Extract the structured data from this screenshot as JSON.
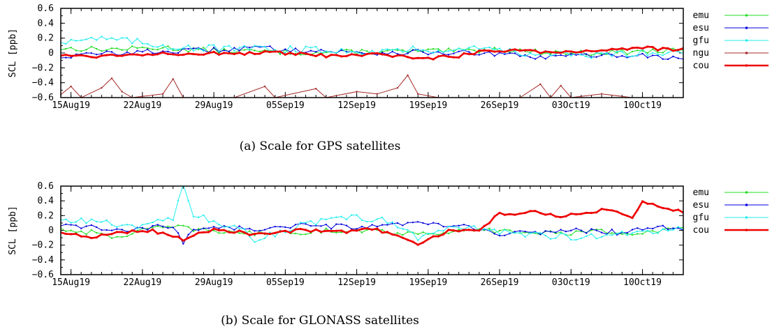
{
  "figure": {
    "captions": [
      "(a) Scale for GPS satellites",
      "(b) Scale for GLONASS satellites"
    ]
  },
  "chart_data": [
    {
      "type": "line",
      "caption": "(a) Scale for GPS satellites",
      "ylabel": "SCL [ppb]",
      "ylim": [
        -0.6,
        0.6
      ],
      "yticks": [
        "0.6",
        "0.4",
        "0.2",
        "0",
        "−0.2",
        "−0.4",
        "−0.6"
      ],
      "xlim": [
        "2019-08-14",
        "2019-10-14"
      ],
      "xticks": [
        {
          "label": "15Aug19",
          "date": "2019-08-15"
        },
        {
          "label": "22Aug19",
          "date": "2019-08-22"
        },
        {
          "label": "29Aug19",
          "date": "2019-08-29"
        },
        {
          "label": "05Sep19",
          "date": "2019-09-05"
        },
        {
          "label": "12Sep19",
          "date": "2019-09-12"
        },
        {
          "label": "19Sep19",
          "date": "2019-09-19"
        },
        {
          "label": "26Sep19",
          "date": "2019-09-26"
        },
        {
          "label": "03Oct19",
          "date": "2019-10-03"
        },
        {
          "label": "10Oct19",
          "date": "2019-10-10"
        }
      ],
      "legend": "right",
      "series": [
        {
          "name": "emu",
          "color": "#22dd22",
          "points": [
            [
              "2019-08-14",
              0.06
            ],
            [
              "2019-08-19",
              0.05
            ],
            [
              "2019-08-24",
              0.07
            ],
            [
              "2019-08-29",
              0.03
            ],
            [
              "2019-09-03",
              0.02
            ],
            [
              "2019-09-08",
              0.0
            ],
            [
              "2019-09-13",
              0.02
            ],
            [
              "2019-09-18",
              0.02
            ],
            [
              "2019-09-23",
              0.03
            ],
            [
              "2019-09-26",
              0.05
            ],
            [
              "2019-09-30",
              0.01
            ],
            [
              "2019-10-05",
              0.0
            ],
            [
              "2019-10-10",
              0.02
            ],
            [
              "2019-10-14",
              0.03
            ]
          ]
        },
        {
          "name": "esu",
          "color": "#0000dd",
          "points": [
            [
              "2019-08-14",
              -0.05
            ],
            [
              "2019-08-19",
              0.0
            ],
            [
              "2019-08-24",
              0.02
            ],
            [
              "2019-08-29",
              0.04
            ],
            [
              "2019-09-02",
              0.07
            ],
            [
              "2019-09-08",
              0.03
            ],
            [
              "2019-09-13",
              0.0
            ],
            [
              "2019-09-18",
              0.01
            ],
            [
              "2019-09-23",
              0.0
            ],
            [
              "2019-09-26",
              -0.02
            ],
            [
              "2019-09-30",
              -0.06
            ],
            [
              "2019-10-05",
              -0.03
            ],
            [
              "2019-10-10",
              -0.03
            ],
            [
              "2019-10-14",
              -0.08
            ]
          ]
        },
        {
          "name": "gfu",
          "color": "#22eeee",
          "points": [
            [
              "2019-08-14",
              0.16
            ],
            [
              "2019-08-17",
              0.2
            ],
            [
              "2019-08-20",
              0.17
            ],
            [
              "2019-08-24",
              0.1
            ],
            [
              "2019-08-29",
              0.06
            ],
            [
              "2019-09-03",
              0.05
            ],
            [
              "2019-09-08",
              0.04
            ],
            [
              "2019-09-13",
              0.03
            ],
            [
              "2019-09-18",
              0.04
            ],
            [
              "2019-09-23",
              0.06
            ],
            [
              "2019-09-26",
              0.05
            ],
            [
              "2019-09-30",
              -0.02
            ],
            [
              "2019-10-05",
              -0.04
            ],
            [
              "2019-10-10",
              0.01
            ],
            [
              "2019-10-14",
              0.02
            ]
          ]
        },
        {
          "name": "ngu",
          "color": "#a52a2a",
          "points": [
            [
              "2019-08-14",
              -0.56
            ],
            [
              "2019-08-15",
              -0.45
            ],
            [
              "2019-08-16",
              -0.6
            ],
            [
              "2019-08-18",
              -0.47
            ],
            [
              "2019-08-19",
              -0.34
            ],
            [
              "2019-08-20",
              -0.52
            ],
            [
              "2019-08-21",
              -0.6
            ],
            [
              "2019-08-24",
              -0.55
            ],
            [
              "2019-08-25",
              -0.35
            ],
            [
              "2019-08-26",
              -0.6
            ],
            [
              "2019-08-31",
              -0.6
            ],
            [
              "2019-09-03",
              -0.45
            ],
            [
              "2019-09-04",
              -0.6
            ],
            [
              "2019-09-08",
              -0.48
            ],
            [
              "2019-09-09",
              -0.6
            ],
            [
              "2019-09-12",
              -0.52
            ],
            [
              "2019-09-14",
              -0.55
            ],
            [
              "2019-09-16",
              -0.47
            ],
            [
              "2019-09-17",
              -0.3
            ],
            [
              "2019-09-18",
              -0.55
            ],
            [
              "2019-09-20",
              -0.6
            ],
            [
              "2019-09-28",
              -0.6
            ],
            [
              "2019-09-30",
              -0.42
            ],
            [
              "2019-10-01",
              -0.6
            ],
            [
              "2019-10-02",
              -0.44
            ],
            [
              "2019-10-03",
              -0.6
            ],
            [
              "2019-10-06",
              -0.55
            ],
            [
              "2019-10-09",
              -0.6
            ],
            [
              "2019-10-14",
              -0.6
            ]
          ]
        },
        {
          "name": "cou",
          "color": "#ee0000",
          "points": [
            [
              "2019-08-14",
              -0.03
            ],
            [
              "2019-08-17",
              -0.04
            ],
            [
              "2019-08-20",
              -0.03
            ],
            [
              "2019-08-24",
              0.0
            ],
            [
              "2019-08-29",
              -0.01
            ],
            [
              "2019-09-03",
              0.0
            ],
            [
              "2019-09-07",
              -0.02
            ],
            [
              "2019-09-10",
              -0.05
            ],
            [
              "2019-09-13",
              -0.02
            ],
            [
              "2019-09-17",
              -0.05
            ],
            [
              "2019-09-19",
              -0.07
            ],
            [
              "2019-09-22",
              -0.04
            ],
            [
              "2019-09-25",
              0.04
            ],
            [
              "2019-09-28",
              0.04
            ],
            [
              "2019-10-01",
              0.01
            ],
            [
              "2019-10-05",
              0.03
            ],
            [
              "2019-10-08",
              0.06
            ],
            [
              "2019-10-10",
              0.07
            ],
            [
              "2019-10-13",
              0.04
            ],
            [
              "2019-10-14",
              0.05
            ]
          ]
        }
      ]
    },
    {
      "type": "line",
      "caption": "(b) Scale for GLONASS satellites",
      "ylabel": "SCL [ppb]",
      "ylim": [
        -0.6,
        0.6
      ],
      "yticks": [
        "0.6",
        "0.4",
        "0.2",
        "0",
        "−0.2",
        "−0.4",
        "−0.6"
      ],
      "xlim": [
        "2019-08-14",
        "2019-10-14"
      ],
      "xticks": [
        {
          "label": "15Aug19",
          "date": "2019-08-15"
        },
        {
          "label": "22Aug19",
          "date": "2019-08-22"
        },
        {
          "label": "29Aug19",
          "date": "2019-08-29"
        },
        {
          "label": "05Sep19",
          "date": "2019-09-05"
        },
        {
          "label": "12Sep19",
          "date": "2019-09-12"
        },
        {
          "label": "19Sep19",
          "date": "2019-09-19"
        },
        {
          "label": "26Sep19",
          "date": "2019-09-26"
        },
        {
          "label": "03Oct19",
          "date": "2019-10-03"
        },
        {
          "label": "10Oct19",
          "date": "2019-10-10"
        }
      ],
      "legend": "right",
      "series": [
        {
          "name": "emu",
          "color": "#22dd22",
          "points": [
            [
              "2019-08-14",
              0.02
            ],
            [
              "2019-08-17",
              -0.03
            ],
            [
              "2019-08-19",
              -0.1
            ],
            [
              "2019-08-22",
              0.0
            ],
            [
              "2019-08-25",
              0.05
            ],
            [
              "2019-08-28",
              0.0
            ],
            [
              "2019-09-02",
              -0.04
            ],
            [
              "2019-09-07",
              -0.02
            ],
            [
              "2019-09-12",
              0.01
            ],
            [
              "2019-09-17",
              -0.04
            ],
            [
              "2019-09-22",
              -0.02
            ],
            [
              "2019-09-25",
              0.0
            ],
            [
              "2019-09-30",
              -0.04
            ],
            [
              "2019-10-05",
              -0.02
            ],
            [
              "2019-10-10",
              -0.03
            ],
            [
              "2019-10-14",
              0.02
            ]
          ]
        },
        {
          "name": "esu",
          "color": "#0000dd",
          "points": [
            [
              "2019-08-14",
              0.05
            ],
            [
              "2019-08-17",
              0.05
            ],
            [
              "2019-08-20",
              -0.02
            ],
            [
              "2019-08-23",
              0.04
            ],
            [
              "2019-08-25",
              0.05
            ],
            [
              "2019-08-26",
              -0.17
            ],
            [
              "2019-08-27",
              0.03
            ],
            [
              "2019-08-30",
              0.05
            ],
            [
              "2019-09-02",
              0.01
            ],
            [
              "2019-09-06",
              0.06
            ],
            [
              "2019-09-10",
              0.05
            ],
            [
              "2019-09-14",
              0.04
            ],
            [
              "2019-09-18",
              0.1
            ],
            [
              "2019-09-21",
              0.06
            ],
            [
              "2019-09-24",
              0.03
            ],
            [
              "2019-09-26",
              -0.06
            ],
            [
              "2019-09-30",
              -0.02
            ],
            [
              "2019-10-04",
              0.0
            ],
            [
              "2019-10-08",
              -0.03
            ],
            [
              "2019-10-12",
              0.05
            ],
            [
              "2019-10-14",
              0.0
            ]
          ]
        },
        {
          "name": "gfu",
          "color": "#22eeee",
          "points": [
            [
              "2019-08-14",
              0.12
            ],
            [
              "2019-08-17",
              0.14
            ],
            [
              "2019-08-20",
              0.05
            ],
            [
              "2019-08-23",
              0.08
            ],
            [
              "2019-08-25",
              0.15
            ],
            [
              "2019-08-26",
              0.6
            ],
            [
              "2019-08-27",
              0.2
            ],
            [
              "2019-08-29",
              0.12
            ],
            [
              "2019-09-01",
              0.02
            ],
            [
              "2019-09-02",
              -0.15
            ],
            [
              "2019-09-05",
              0.02
            ],
            [
              "2019-09-08",
              0.1
            ],
            [
              "2019-09-12",
              0.18
            ],
            [
              "2019-09-15",
              0.12
            ],
            [
              "2019-09-18",
              -0.1
            ],
            [
              "2019-09-21",
              0.05
            ],
            [
              "2019-09-24",
              0.02
            ],
            [
              "2019-09-28",
              -0.04
            ],
            [
              "2019-10-02",
              -0.08
            ],
            [
              "2019-10-06",
              -0.1
            ],
            [
              "2019-10-10",
              -0.02
            ],
            [
              "2019-10-14",
              0.03
            ]
          ]
        },
        {
          "name": "cou",
          "color": "#ee0000",
          "points": [
            [
              "2019-08-14",
              -0.04
            ],
            [
              "2019-08-17",
              -0.1
            ],
            [
              "2019-08-20",
              -0.02
            ],
            [
              "2019-08-23",
              0.0
            ],
            [
              "2019-08-26",
              -0.12
            ],
            [
              "2019-08-29",
              0.02
            ],
            [
              "2019-09-02",
              -0.05
            ],
            [
              "2019-09-06",
              0.0
            ],
            [
              "2019-09-10",
              -0.02
            ],
            [
              "2019-09-14",
              0.02
            ],
            [
              "2019-09-18",
              -0.2
            ],
            [
              "2019-09-21",
              0.0
            ],
            [
              "2019-09-24",
              0.0
            ],
            [
              "2019-09-26",
              0.22
            ],
            [
              "2019-09-29",
              0.25
            ],
            [
              "2019-10-02",
              0.2
            ],
            [
              "2019-10-05",
              0.26
            ],
            [
              "2019-10-07",
              0.28
            ],
            [
              "2019-10-09",
              0.18
            ],
            [
              "2019-10-10",
              0.38
            ],
            [
              "2019-10-12",
              0.3
            ],
            [
              "2019-10-14",
              0.26
            ]
          ]
        }
      ]
    }
  ]
}
